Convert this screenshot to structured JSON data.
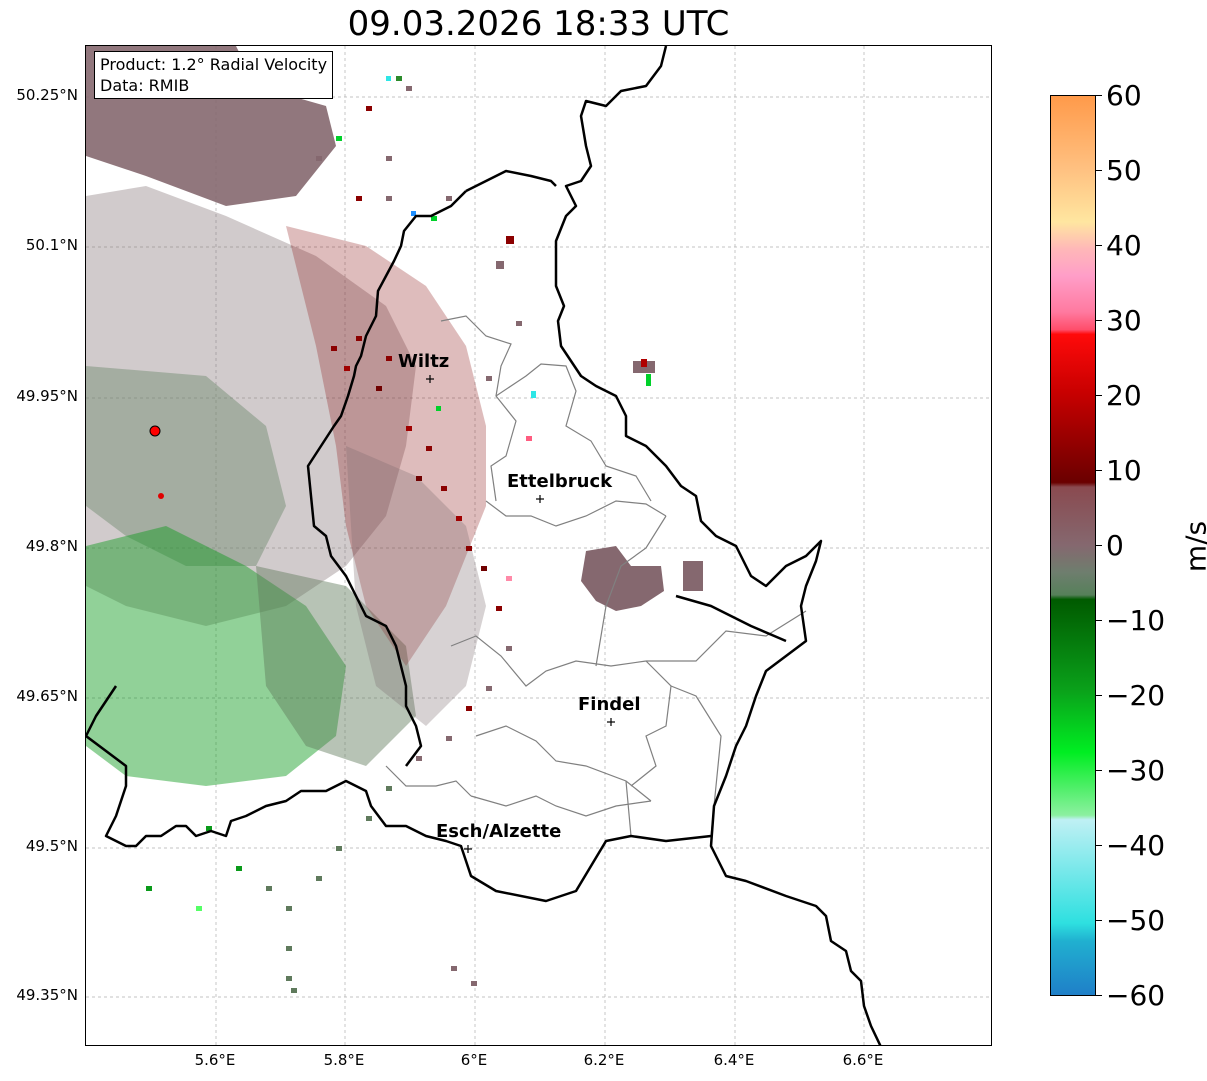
{
  "title": "09.03.2026 18:33 UTC",
  "info": {
    "line1": "Product: 1.2° Radial Velocity",
    "line2": "Data: RMIB"
  },
  "lat_ticks": [
    "50.25°N",
    "50.1°N",
    "49.95°N",
    "49.8°N",
    "49.65°N",
    "49.5°N",
    "49.35°N"
  ],
  "lon_ticks": [
    "5.6°E",
    "5.8°E",
    "6°E",
    "6.2°E",
    "6.4°E",
    "6.6°E"
  ],
  "colorbar": {
    "ticks": [
      "60",
      "50",
      "40",
      "30",
      "20",
      "10",
      "0",
      "−10",
      "−20",
      "−30",
      "−40",
      "−50",
      "−60"
    ],
    "unit": "m/s",
    "range": [
      -60,
      60
    ]
  },
  "cities": [
    "Wiltz",
    "Ettelbruck",
    "Findel",
    "Esch/Alzette"
  ],
  "colors": {
    "border_country": "#000000",
    "border_canton": "#808080",
    "grid": "#b0b0b0",
    "radar_site": "#ff0000"
  }
}
